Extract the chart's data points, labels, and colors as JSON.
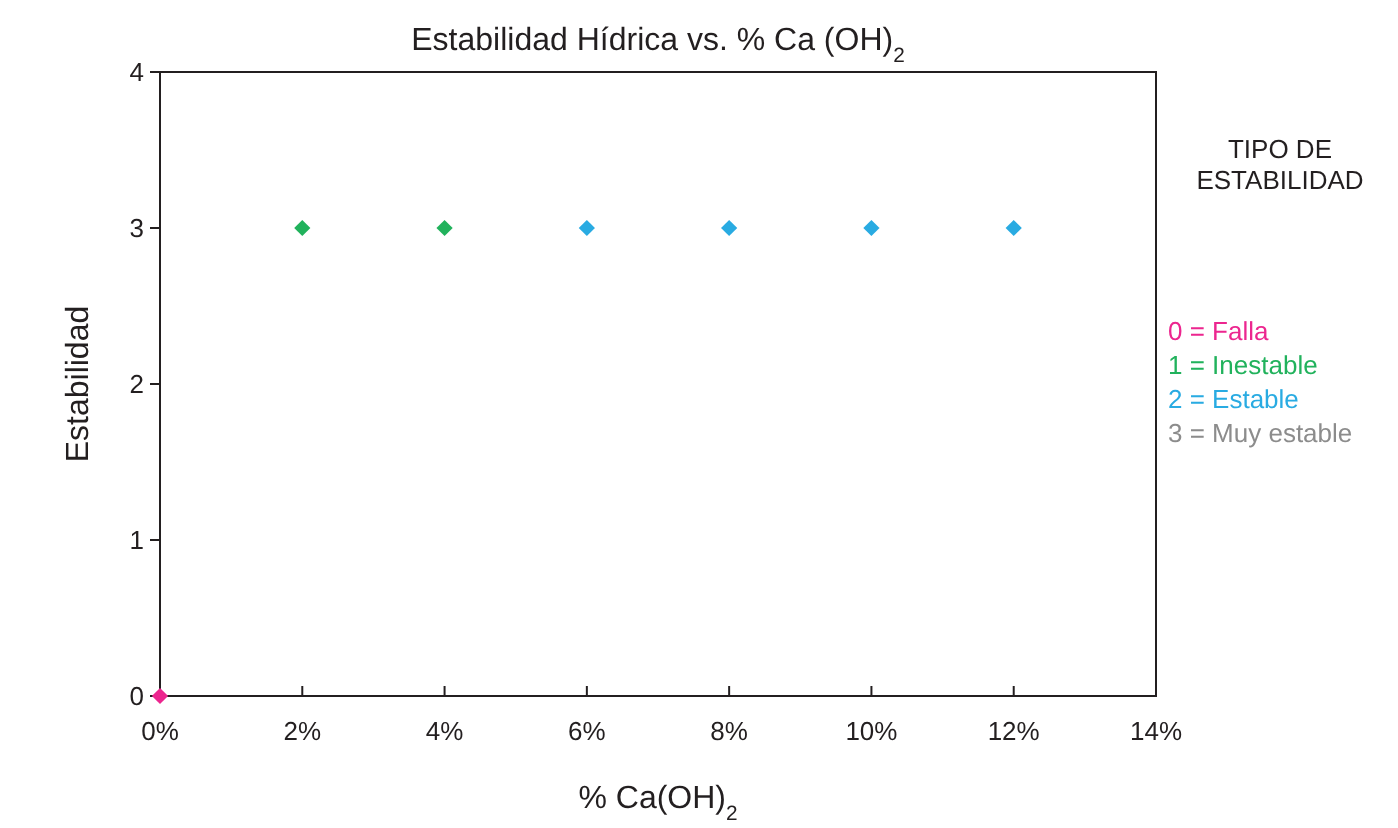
{
  "chart_data": {
    "type": "scatter",
    "title": "Estabilidad Hídrica vs. % Ca (OH)$_{2}$",
    "xlabel": "% Ca(OH)$_{2}$",
    "ylabel": "Estabilidad",
    "legend_title": "TIPO DE ESTABILIDAD",
    "x": [
      0,
      2,
      4,
      6,
      8,
      10,
      12
    ],
    "series": [
      {
        "name": "0 = Falla",
        "color": "#ec268f",
        "values": [
          0,
          null,
          null,
          null,
          null,
          null,
          null
        ]
      },
      {
        "name": "1 = Inestable",
        "color": "#21b25c",
        "values": [
          null,
          3,
          3,
          null,
          null,
          null,
          null
        ]
      },
      {
        "name": "2 = Estable",
        "color": "#29abe2",
        "values": [
          null,
          null,
          null,
          3,
          3,
          3,
          3
        ]
      },
      {
        "name": "3 = Muy estable",
        "color": "#8c8c8c",
        "values": [
          null,
          null,
          null,
          null,
          null,
          null,
          null
        ]
      }
    ],
    "xlim": [
      0,
      14
    ],
    "xticks": [
      {
        "value": 0,
        "label": "0%"
      },
      {
        "value": 2,
        "label": "2%"
      },
      {
        "value": 4,
        "label": "4%"
      },
      {
        "value": 6,
        "label": "6%"
      },
      {
        "value": 8,
        "label": "8%"
      },
      {
        "value": 10,
        "label": "10%"
      },
      {
        "value": 12,
        "label": "12%"
      },
      {
        "value": 14,
        "label": "14%"
      }
    ],
    "ylim": [
      0,
      4
    ],
    "yticks": [
      0,
      1,
      2,
      3,
      4
    ],
    "grid": false,
    "legend": "right",
    "marker": "diamond"
  }
}
